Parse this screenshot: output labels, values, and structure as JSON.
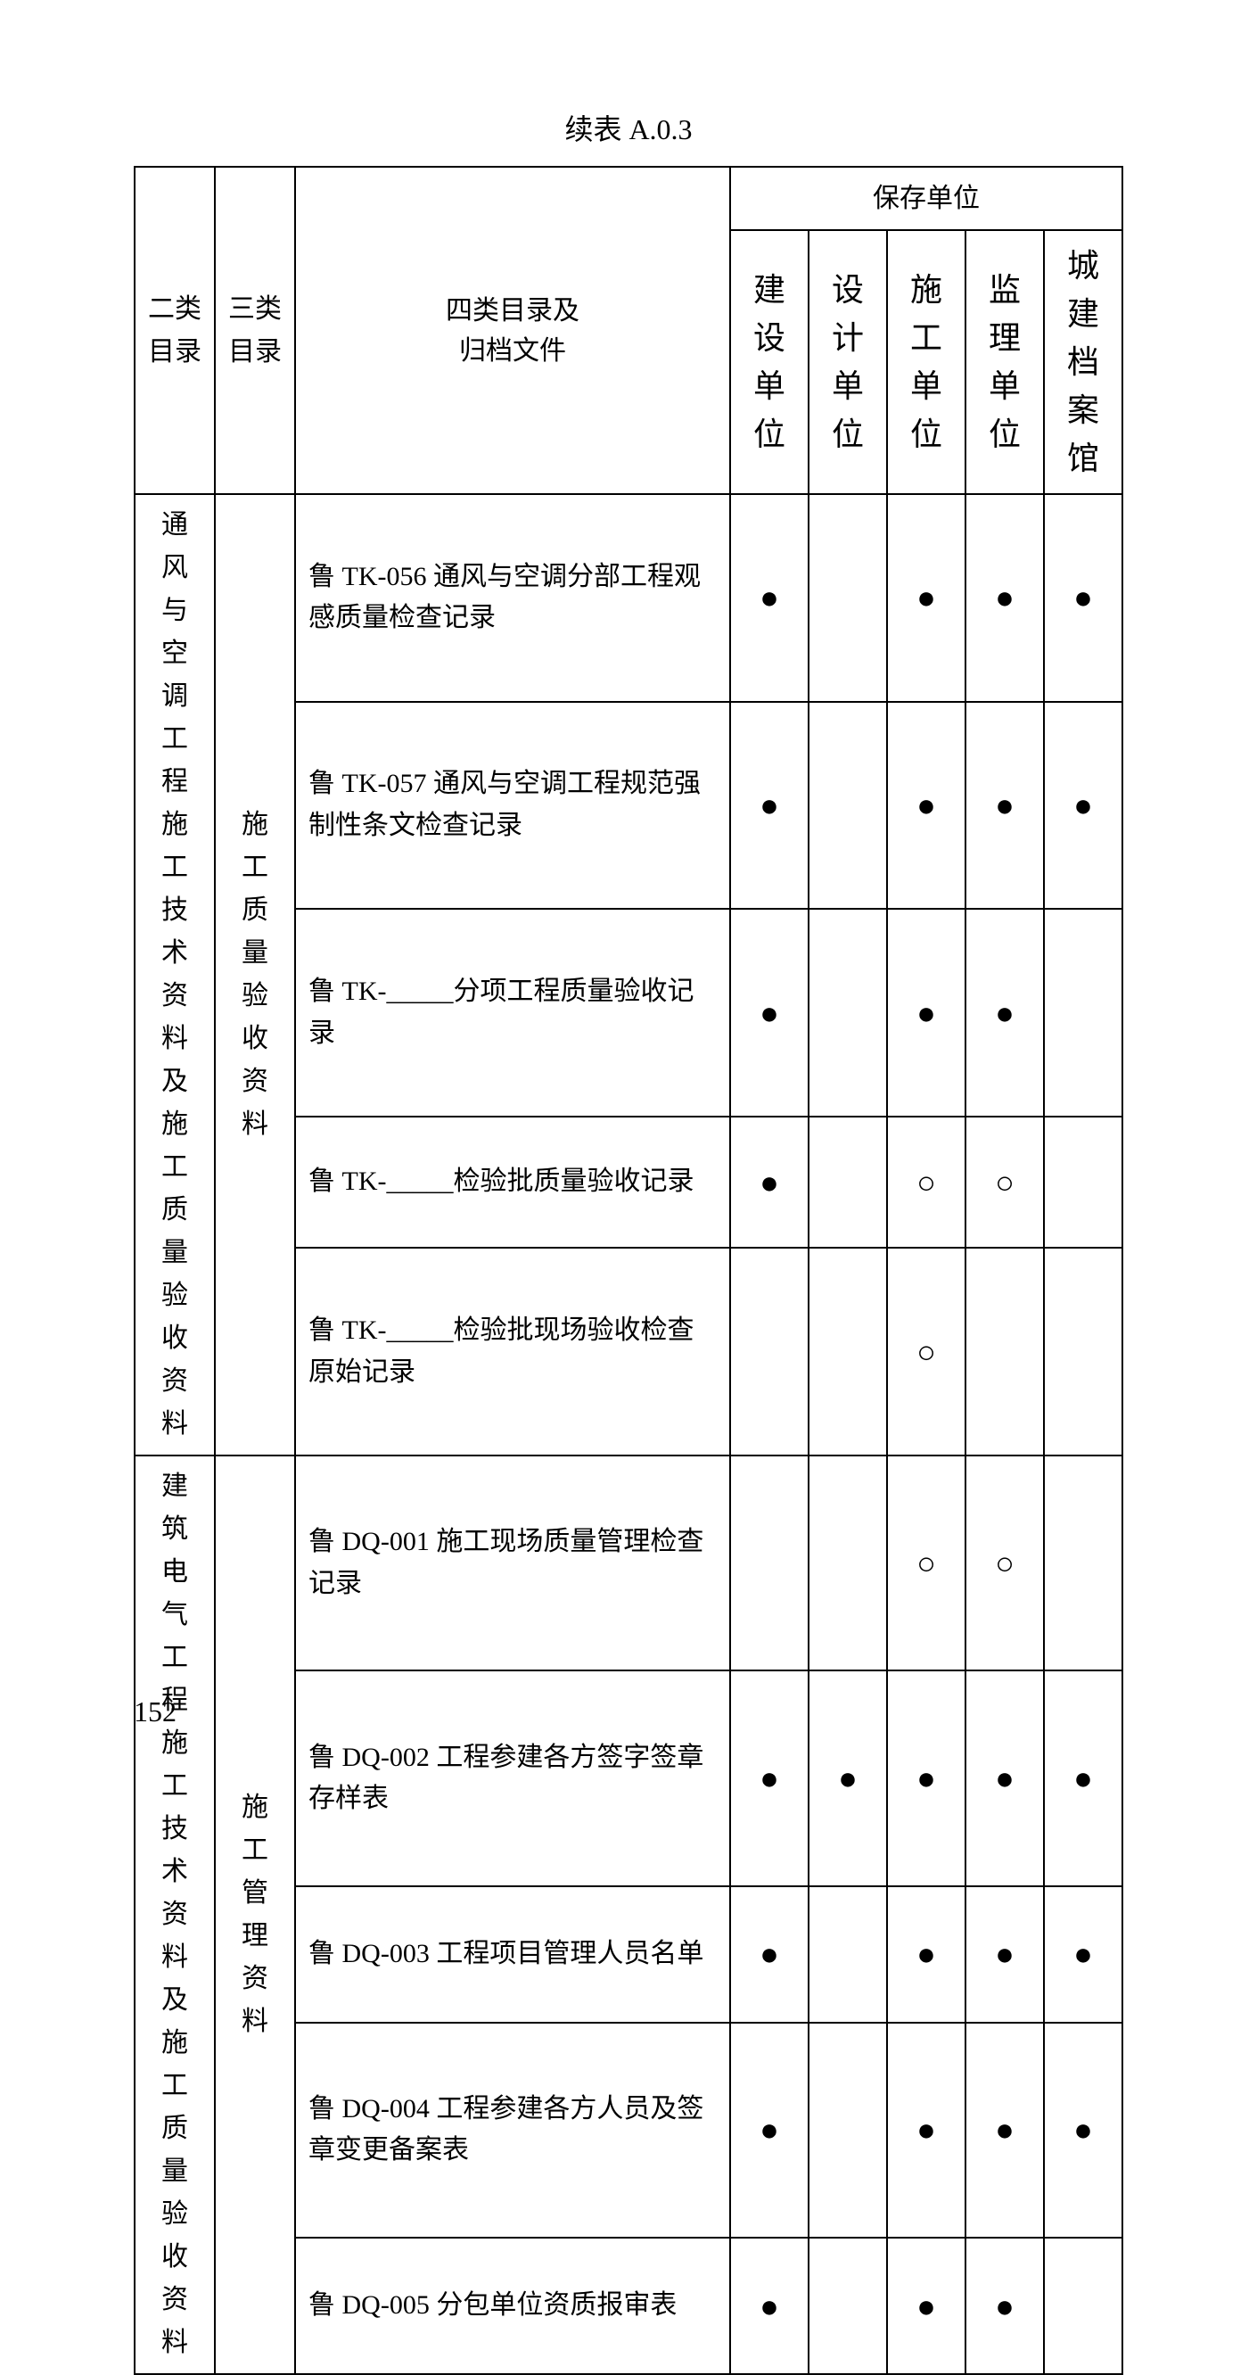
{
  "title": "续表 A.0.3",
  "page_number": "152",
  "table": {
    "border_color": "#000000",
    "background_color": "#ffffff",
    "font_size_header": 30,
    "font_size_body": 30,
    "headers": {
      "col1": "二类目录",
      "col2": "三类目录",
      "col3": "四类目录及归档文件",
      "storage_group": "保存单位",
      "storage_cols": [
        "建设单位",
        "设计单位",
        "施工单位",
        "监理单位",
        "城建档案馆"
      ]
    },
    "col1_header_rows": [
      "二类",
      "目录"
    ],
    "col2_header_rows": [
      "三类",
      "目录"
    ],
    "col3_header_rows": [
      "四类目录及",
      "归档文件"
    ],
    "sections": [
      {
        "cat2": "通风与空调工程施工技术资料及施工质量验收资料",
        "cat3": "施工质量验收资料",
        "rows": [
          {
            "desc": "鲁 TK-056 通风与空调分部工程观感质量检查记录",
            "marks": [
              "●",
              "",
              "●",
              "●",
              "●"
            ]
          },
          {
            "desc": "鲁 TK-057 通风与空调工程规范强制性条文检查记录",
            "marks": [
              "●",
              "",
              "●",
              "●",
              "●"
            ]
          },
          {
            "desc": "鲁 TK-_____分项工程质量验收记录",
            "marks": [
              "●",
              "",
              "●",
              "●",
              ""
            ]
          },
          {
            "desc": "鲁 TK-_____检验批质量验收记录",
            "marks": [
              "●",
              "",
              "○",
              "○",
              ""
            ]
          },
          {
            "desc": "鲁 TK-_____检验批现场验收检查原始记录",
            "marks": [
              "",
              "",
              "○",
              "",
              ""
            ]
          }
        ]
      },
      {
        "cat2": "建筑电气工程施工技术资料及施工质量验收资料",
        "cat3": "施工管理资料",
        "rows": [
          {
            "desc": "鲁 DQ-001 施工现场质量管理检查记录",
            "marks": [
              "",
              "",
              "○",
              "○",
              ""
            ]
          },
          {
            "desc": "鲁 DQ-002 工程参建各方签字签章存样表",
            "marks": [
              "●",
              "●",
              "●",
              "●",
              "●"
            ]
          },
          {
            "desc": "鲁 DQ-003 工程项目管理人员名单",
            "marks": [
              "●",
              "",
              "●",
              "●",
              "●"
            ]
          },
          {
            "desc": "鲁 DQ-004 工程参建各方人员及签章变更备案表",
            "marks": [
              "●",
              "",
              "●",
              "●",
              "●"
            ]
          },
          {
            "desc": "鲁 DQ-005 分包单位资质报审表",
            "marks": [
              "●",
              "",
              "●",
              "●",
              ""
            ]
          }
        ]
      }
    ]
  }
}
